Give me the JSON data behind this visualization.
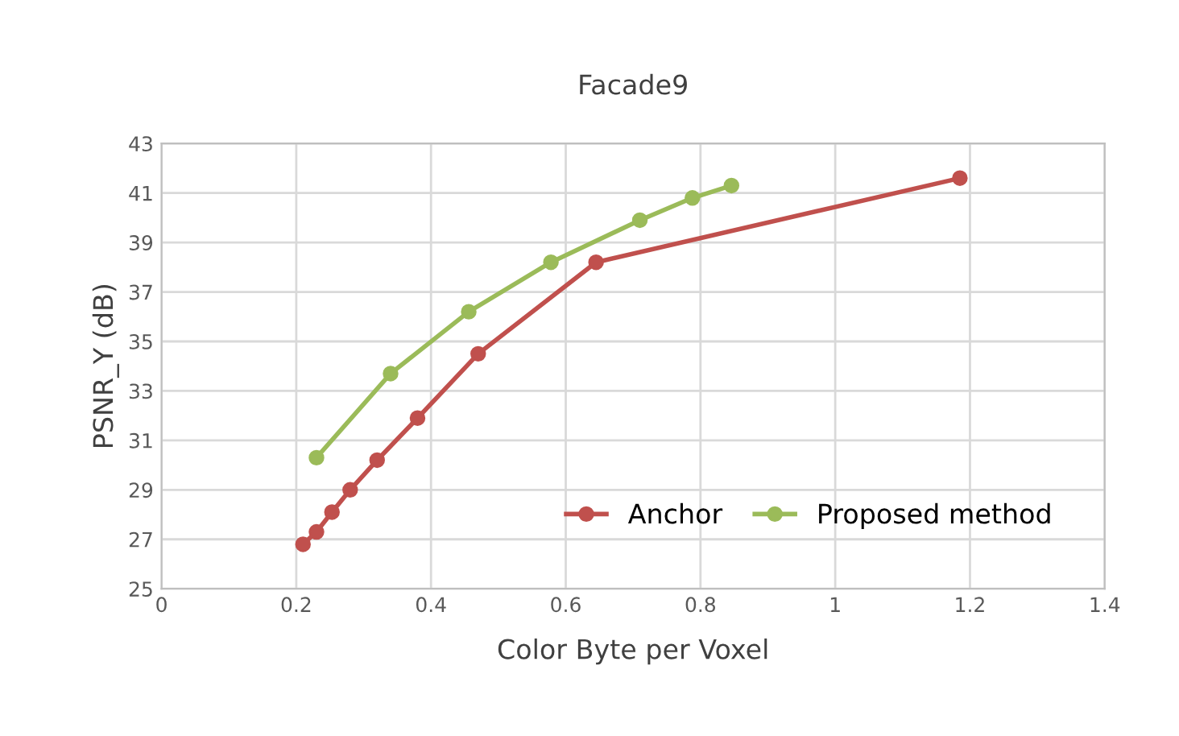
{
  "chart_data": {
    "type": "line",
    "title": "Facade9",
    "xlabel": "Color Byte per Voxel",
    "ylabel": "PSNR_Y (dB)",
    "series": [
      {
        "name": "Anchor",
        "color": "#c0504d",
        "x": [
          0.21,
          0.23,
          0.253,
          0.28,
          0.32,
          0.38,
          0.47,
          0.645,
          1.185
        ],
        "values": [
          26.8,
          27.3,
          28.1,
          29.0,
          30.2,
          31.9,
          34.5,
          38.2,
          41.6
        ]
      },
      {
        "name": "Proposed method",
        "color": "#9bbb59",
        "x": [
          0.23,
          0.34,
          0.456,
          0.578,
          0.71,
          0.788,
          0.846
        ],
        "values": [
          30.3,
          33.7,
          36.2,
          38.2,
          39.9,
          40.8,
          41.3
        ]
      }
    ],
    "xlim": [
      0,
      1.4
    ],
    "xticks": [
      0,
      0.2,
      0.4,
      0.6,
      0.8,
      1,
      1.2,
      1.4
    ],
    "ylim": [
      25,
      43
    ],
    "yticks": [
      25,
      27,
      29,
      31,
      33,
      35,
      37,
      39,
      41,
      43
    ],
    "grid": true,
    "legend": "bottom right",
    "marker": "circle",
    "line_style": "solid"
  }
}
